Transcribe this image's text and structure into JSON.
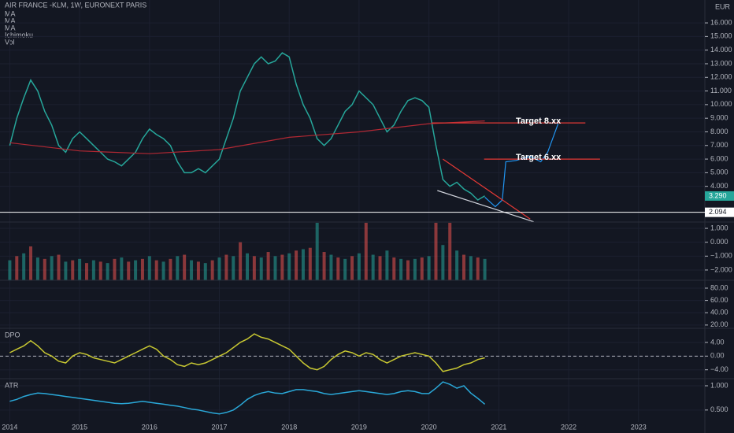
{
  "header": {
    "title": "AIR FRANCE -KLM, 1W, EURONEXT PARIS",
    "indicators": [
      "MA",
      "MA",
      "MA",
      "Ichimoku",
      "Vol"
    ],
    "currency": "EUR"
  },
  "chart_data": [
    {
      "type": "line",
      "xlim": [
        2013.86,
        2023.95
      ],
      "xticks": [
        2014,
        2015,
        2016,
        2017,
        2018,
        2019,
        2020,
        2021,
        2022,
        2023
      ],
      "ylim": [
        1.38,
        17.68
      ],
      "yticks": [
        {
          "value": 16,
          "label": "16.000"
        },
        {
          "value": 15,
          "label": "15.000"
        },
        {
          "value": 14,
          "label": "14.000"
        },
        {
          "value": 13,
          "label": "13.000"
        },
        {
          "value": 12,
          "label": "12.000"
        },
        {
          "value": 11,
          "label": "11.000"
        },
        {
          "value": 10,
          "label": "10.000"
        },
        {
          "value": 9,
          "label": "9.000"
        },
        {
          "value": 8,
          "label": "8.000"
        },
        {
          "value": 7,
          "label": "7.000"
        },
        {
          "value": 6,
          "label": "6.000"
        },
        {
          "value": 5,
          "label": "5.000"
        },
        {
          "value": 4,
          "label": "4.000"
        }
      ],
      "price_lines": [
        {
          "value": 3.29,
          "label": "3.290",
          "color": "#26a69a"
        },
        {
          "value": 2.094,
          "label": "2.094",
          "color": "#ffffff"
        }
      ],
      "series": [
        {
          "color": "#26a69a",
          "x": [
            2014.0,
            2014.1,
            2014.2,
            2014.3,
            2014.4,
            2014.5,
            2014.6,
            2014.7,
            2014.8,
            2014.9,
            2015.0,
            2015.1,
            2015.2,
            2015.3,
            2015.4,
            2015.5,
            2015.6,
            2015.7,
            2015.8,
            2015.9,
            2016.0,
            2016.1,
            2016.2,
            2016.3,
            2016.4,
            2016.5,
            2016.6,
            2016.7,
            2016.8,
            2016.9,
            2017.0,
            2017.1,
            2017.2,
            2017.3,
            2017.4,
            2017.5,
            2017.6,
            2017.7,
            2017.8,
            2017.9,
            2018.0,
            2018.1,
            2018.2,
            2018.3,
            2018.4,
            2018.5,
            2018.6,
            2018.7,
            2018.8,
            2018.9,
            2019.0,
            2019.1,
            2019.2,
            2019.3,
            2019.4,
            2019.5,
            2019.6,
            2019.7,
            2019.8,
            2019.9,
            2020.0,
            2020.1,
            2020.2,
            2020.3,
            2020.4,
            2020.5,
            2020.6,
            2020.7,
            2020.8
          ],
          "values": [
            7.0,
            9.0,
            10.5,
            11.8,
            11.0,
            9.5,
            8.5,
            7.0,
            6.5,
            7.5,
            8.0,
            7.5,
            7.0,
            6.5,
            6.0,
            5.8,
            5.5,
            6.0,
            6.5,
            7.5,
            8.2,
            7.8,
            7.5,
            7.0,
            5.8,
            5.0,
            5.0,
            5.3,
            5.0,
            5.5,
            6.0,
            7.5,
            9.0,
            11.0,
            12.0,
            13.0,
            13.5,
            13.0,
            13.2,
            13.8,
            13.5,
            11.5,
            10.0,
            9.0,
            7.5,
            7.0,
            7.5,
            8.5,
            9.5,
            10.0,
            11.0,
            10.5,
            10.0,
            9.0,
            8.0,
            8.5,
            9.5,
            10.3,
            10.5,
            10.3,
            9.8,
            7.0,
            4.5,
            4.0,
            4.3,
            3.8,
            3.5,
            3.0,
            3.3
          ]
        },
        {
          "color": "#b22833",
          "x": [
            2014,
            2015,
            2016,
            2017,
            2018,
            2019,
            2020,
            2020.8
          ],
          "values": [
            7.2,
            6.6,
            6.4,
            6.7,
            7.6,
            8.0,
            8.6,
            8.8
          ]
        },
        {
          "color": "#2196f3",
          "x": [
            2020.8,
            2020.95,
            2021.05,
            2021.1,
            2021.25,
            2021.45,
            2021.6,
            2021.7,
            2021.85
          ],
          "values": [
            3.2,
            2.5,
            3.0,
            5.8,
            5.9,
            6.2,
            5.8,
            6.5,
            8.6
          ]
        },
        {
          "color": "#d1d4dc",
          "x": [
            2020.12,
            2021.5
          ],
          "values": [
            3.69,
            1.4
          ]
        },
        {
          "color": "#e53935",
          "x": [
            2020.2,
            2021.45
          ],
          "values": [
            6.0,
            1.6
          ]
        },
        {
          "name": "Target  8.xx",
          "color": "#e53935",
          "x": [
            2020.04,
            2022.24
          ],
          "values": [
            8.66,
            8.66
          ]
        },
        {
          "name": "Target  6.xx",
          "color": "#e53935",
          "x": [
            2020.79,
            2022.45
          ],
          "values": [
            6.0,
            6.0
          ]
        }
      ]
    },
    {
      "type": "bar",
      "ylim": [
        -2.74,
        1.4
      ],
      "yticks": [
        {
          "value": 1,
          "label": "1.000"
        },
        {
          "value": 0,
          "label": "0.000"
        },
        {
          "value": -1,
          "label": "−1.000"
        },
        {
          "value": -2,
          "label": "−2.000"
        }
      ],
      "x": [
        2014.0,
        2014.1,
        2014.2,
        2014.3,
        2014.4,
        2014.5,
        2014.6,
        2014.7,
        2014.8,
        2014.9,
        2015.0,
        2015.1,
        2015.2,
        2015.3,
        2015.4,
        2015.5,
        2015.6,
        2015.7,
        2015.8,
        2015.9,
        2016.0,
        2016.1,
        2016.2,
        2016.3,
        2016.4,
        2016.5,
        2016.6,
        2016.7,
        2016.8,
        2016.9,
        2017.0,
        2017.1,
        2017.2,
        2017.3,
        2017.4,
        2017.5,
        2017.6,
        2017.7,
        2017.8,
        2017.9,
        2018.0,
        2018.1,
        2018.2,
        2018.3,
        2018.4,
        2018.5,
        2018.6,
        2018.7,
        2018.8,
        2018.9,
        2019.0,
        2019.1,
        2019.2,
        2019.3,
        2019.4,
        2019.5,
        2019.6,
        2019.7,
        2019.8,
        2019.9,
        2020.0,
        2020.1,
        2020.2,
        2020.3,
        2020.4,
        2020.5,
        2020.6,
        2020.7,
        2020.8
      ],
      "values": [
        -1.3,
        -1.0,
        -0.8,
        -0.3,
        -1.1,
        -1.2,
        -1.0,
        -0.9,
        -1.4,
        -1.3,
        -1.2,
        -1.5,
        -1.3,
        -1.4,
        -1.5,
        -1.2,
        -1.1,
        -1.4,
        -1.3,
        -1.2,
        -1.0,
        -1.3,
        -1.4,
        -1.2,
        -1.0,
        -0.9,
        -1.3,
        -1.4,
        -1.5,
        -1.3,
        -1.1,
        -0.9,
        -1.0,
        0.0,
        -0.8,
        -1.0,
        -1.1,
        -0.7,
        -1.0,
        -0.9,
        -0.8,
        -0.6,
        -0.5,
        -0.4,
        1.4,
        -0.7,
        -0.9,
        -1.1,
        -1.2,
        -1.0,
        -0.8,
        1.4,
        -0.9,
        -1.0,
        -0.6,
        -1.1,
        -1.2,
        -1.3,
        -1.2,
        -1.1,
        -1.0,
        1.4,
        -0.2,
        1.4,
        -0.6,
        -0.9,
        -1.0,
        -1.1,
        -1.2
      ],
      "colors": [
        "#26a69a",
        "#ef5350"
      ]
    },
    {
      "type": "empty",
      "ylim": [
        16,
        91.5
      ],
      "yticks": [
        {
          "value": 80,
          "label": "80.00"
        },
        {
          "value": 60,
          "label": "60.00"
        },
        {
          "value": 40,
          "label": "40.00"
        },
        {
          "value": 20,
          "label": "20.00"
        }
      ]
    },
    {
      "type": "line",
      "title": "DPO",
      "ylim": [
        -6.6,
        7.9
      ],
      "zero_line": 0,
      "yticks": [
        {
          "value": 4,
          "label": "4.00"
        },
        {
          "value": 0,
          "label": "0.00"
        },
        {
          "value": -4,
          "label": "−4.00"
        }
      ],
      "series": [
        {
          "color": "#c8c832",
          "x": [
            2014.0,
            2014.1,
            2014.2,
            2014.3,
            2014.4,
            2014.5,
            2014.6,
            2014.7,
            2014.8,
            2014.9,
            2015.0,
            2015.1,
            2015.2,
            2015.3,
            2015.4,
            2015.5,
            2015.6,
            2015.7,
            2015.8,
            2015.9,
            2016.0,
            2016.1,
            2016.2,
            2016.3,
            2016.4,
            2016.5,
            2016.6,
            2016.7,
            2016.8,
            2016.9,
            2017.0,
            2017.1,
            2017.2,
            2017.3,
            2017.4,
            2017.5,
            2017.6,
            2017.7,
            2017.8,
            2017.9,
            2018.0,
            2018.1,
            2018.2,
            2018.3,
            2018.4,
            2018.5,
            2018.6,
            2018.7,
            2018.8,
            2018.9,
            2019.0,
            2019.1,
            2019.2,
            2019.3,
            2019.4,
            2019.5,
            2019.6,
            2019.7,
            2019.8,
            2019.9,
            2020.0,
            2020.1,
            2020.2,
            2020.3,
            2020.4,
            2020.5,
            2020.6,
            2020.7,
            2020.8
          ],
          "values": [
            1,
            2,
            3,
            4.5,
            3,
            1,
            0,
            -1.5,
            -2,
            0,
            1,
            0.5,
            -0.5,
            -1,
            -1.5,
            -2,
            -1,
            0,
            1,
            2,
            3,
            2,
            0,
            -1,
            -2.5,
            -3,
            -2,
            -2.5,
            -2,
            -1,
            0,
            1,
            2.5,
            4,
            5,
            6.5,
            5.5,
            5,
            4,
            3,
            2,
            0,
            -2,
            -3.5,
            -4,
            -3,
            -1,
            0.5,
            1.5,
            1,
            0,
            1,
            0.5,
            -1,
            -2,
            -1,
            0,
            0.5,
            1,
            0.5,
            0,
            -2,
            -4.5,
            -4,
            -3.5,
            -2.5,
            -2,
            -1,
            -0.5
          ]
        }
      ]
    },
    {
      "type": "line",
      "title": "ATR",
      "ylim": [
        0.27,
        1.13
      ],
      "yticks": [
        {
          "value": 1,
          "label": "1.000"
        },
        {
          "value": 0.5,
          "label": "0.500"
        }
      ],
      "series": [
        {
          "color": "#2aa8d8",
          "x": [
            2014.0,
            2014.1,
            2014.2,
            2014.3,
            2014.4,
            2014.5,
            2014.6,
            2014.7,
            2014.8,
            2014.9,
            2015.0,
            2015.1,
            2015.2,
            2015.3,
            2015.4,
            2015.5,
            2015.6,
            2015.7,
            2015.8,
            2015.9,
            2016.0,
            2016.1,
            2016.2,
            2016.3,
            2016.4,
            2016.5,
            2016.6,
            2016.7,
            2016.8,
            2016.9,
            2017.0,
            2017.1,
            2017.2,
            2017.3,
            2017.4,
            2017.5,
            2017.6,
            2017.7,
            2017.8,
            2017.9,
            2018.0,
            2018.1,
            2018.2,
            2018.3,
            2018.4,
            2018.5,
            2018.6,
            2018.7,
            2018.8,
            2018.9,
            2019.0,
            2019.1,
            2019.2,
            2019.3,
            2019.4,
            2019.5,
            2019.6,
            2019.7,
            2019.8,
            2019.9,
            2020.0,
            2020.1,
            2020.2,
            2020.3,
            2020.4,
            2020.5,
            2020.6,
            2020.7,
            2020.8
          ],
          "values": [
            0.68,
            0.72,
            0.78,
            0.82,
            0.85,
            0.84,
            0.82,
            0.8,
            0.78,
            0.76,
            0.74,
            0.72,
            0.7,
            0.68,
            0.66,
            0.64,
            0.63,
            0.64,
            0.66,
            0.68,
            0.66,
            0.64,
            0.62,
            0.6,
            0.58,
            0.55,
            0.52,
            0.5,
            0.47,
            0.44,
            0.42,
            0.45,
            0.5,
            0.6,
            0.72,
            0.8,
            0.85,
            0.88,
            0.85,
            0.84,
            0.88,
            0.92,
            0.92,
            0.9,
            0.88,
            0.84,
            0.82,
            0.84,
            0.86,
            0.88,
            0.9,
            0.88,
            0.86,
            0.84,
            0.82,
            0.84,
            0.88,
            0.9,
            0.88,
            0.84,
            0.84,
            0.95,
            1.08,
            1.03,
            0.95,
            1.0,
            0.85,
            0.74,
            0.62
          ]
        }
      ]
    }
  ]
}
